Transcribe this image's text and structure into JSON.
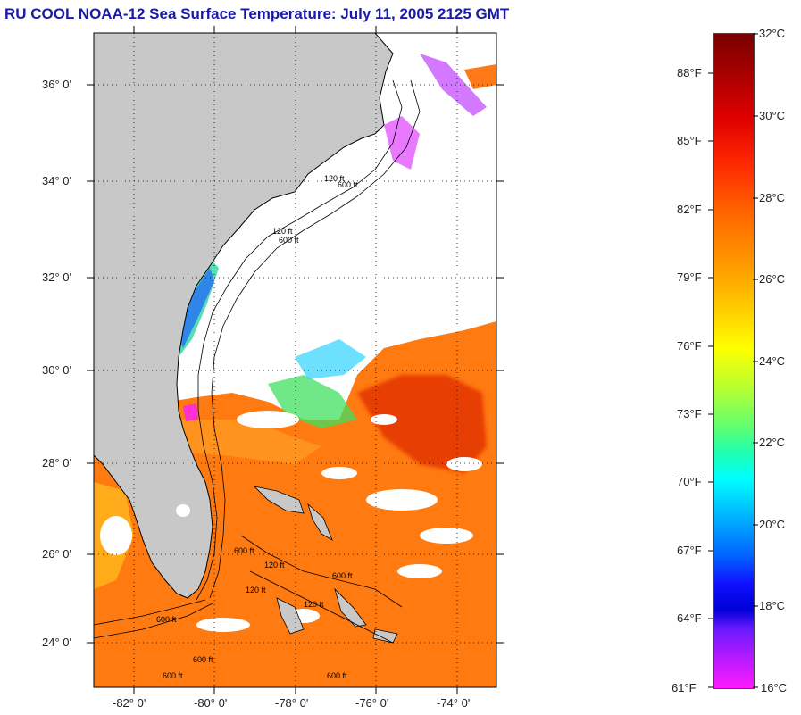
{
  "title": "RU COOL  NOAA-12  Sea Surface Temperature:  July 11, 2005 2125 GMT",
  "map": {
    "lat_labels": [
      "36° 0'",
      "34° 0'",
      "32° 0'",
      "30° 0'",
      "28° 0'",
      "26° 0'",
      "24° 0'"
    ],
    "lon_labels": [
      "-82° 0'",
      "-80° 0'",
      "-78° 0'",
      "-76° 0'",
      "-74° 0'"
    ],
    "contour_labels": [
      "120 ft",
      "600 ft",
      "120 ft",
      "600 ft",
      "120 ft",
      "600 ft",
      "120 ft",
      "600 ft",
      "600 ft",
      "600 ft",
      "600 ft",
      "120 ft",
      "600 ft"
    ],
    "colors": {
      "land": "#c8c8c8",
      "cloud": "#ffffff",
      "warm": "#ff7a10"
    }
  },
  "colorbar": {
    "celsius": [
      "32°C",
      "30°C",
      "28°C",
      "26°C",
      "24°C",
      "22°C",
      "20°C",
      "18°C",
      "16°C"
    ],
    "fahrenheit": [
      "88°F",
      "85°F",
      "82°F",
      "79°F",
      "76°F",
      "73°F",
      "70°F",
      "67°F",
      "64°F",
      "61°F"
    ]
  }
}
